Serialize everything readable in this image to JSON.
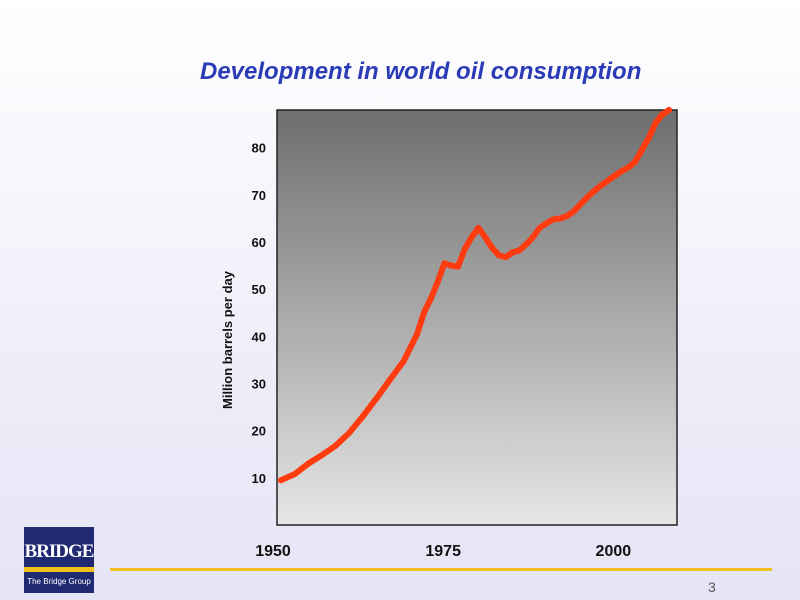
{
  "slide": {
    "title": "Development in world oil consumption",
    "page_number": "3"
  },
  "logo": {
    "wordmark": "BRIDGE",
    "subtitle": "The Bridge Group"
  },
  "colors": {
    "title": "#2b3bb5",
    "line": "#ff3b10",
    "accent_rule": "#f2c01a",
    "logo_bg": "#1f2a72",
    "plot_top": "#6e6e6e",
    "plot_bottom": "#e6e6e6"
  },
  "chart_data": {
    "type": "line",
    "title": "Development in world oil consumption",
    "xlabel": "",
    "ylabel": "Million barrels per day",
    "xlim": [
      1950,
      2007
    ],
    "ylim": [
      0,
      88
    ],
    "x_ticks": [
      1950,
      1975,
      2000
    ],
    "y_ticks": [
      10,
      20,
      30,
      40,
      50,
      60,
      70,
      80
    ],
    "grid": false,
    "legend": "none",
    "series": [
      {
        "x": [
          1950,
          1952,
          1954,
          1956,
          1958,
          1960,
          1962,
          1964,
          1966,
          1968,
          1970,
          1971,
          1972,
          1973,
          1974,
          1975,
          1976,
          1977,
          1978,
          1979,
          1980,
          1981,
          1982,
          1983,
          1984,
          1985,
          1986,
          1987,
          1988,
          1989,
          1990,
          1991,
          1992,
          1993,
          1994,
          1995,
          1996,
          1997,
          1998,
          1999,
          2000,
          2001,
          2002,
          2003,
          2004,
          2005,
          2006,
          2007
        ],
        "y": [
          9.5,
          10.8,
          13.0,
          14.8,
          16.8,
          19.5,
          23.0,
          26.8,
          30.8,
          34.7,
          40.5,
          45.0,
          48.0,
          51.5,
          55.5,
          55.0,
          54.8,
          58.5,
          61.0,
          63.0,
          61.0,
          58.8,
          57.2,
          56.8,
          57.8,
          58.2,
          59.5,
          61.0,
          63.0,
          64.0,
          64.8,
          65.0,
          65.5,
          66.5,
          68.0,
          69.5,
          70.8,
          72.0,
          73.0,
          74.0,
          75.0,
          75.8,
          77.0,
          79.5,
          82.0,
          85.2,
          87.0,
          88.0
        ]
      }
    ]
  }
}
